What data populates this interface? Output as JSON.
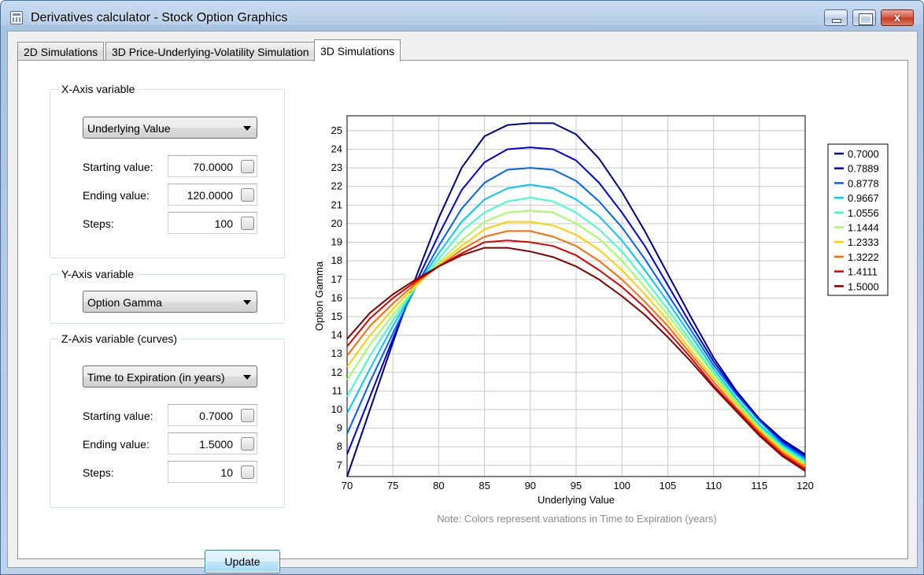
{
  "window": {
    "title": "Derivatives calculator - Stock Option Graphics",
    "close_glyph": "x"
  },
  "tabs": [
    {
      "label": "2D Simulations"
    },
    {
      "label": "3D Price-Underlying-Volatility Simulation"
    },
    {
      "label": "3D Simulations"
    }
  ],
  "x_axis_group": {
    "title": "X-Axis variable",
    "selected": "Underlying Value",
    "starting_label": "Starting value:",
    "starting_value": "70.0000",
    "ending_label": "Ending value:",
    "ending_value": "120.0000",
    "steps_label": "Steps:",
    "steps_value": "100"
  },
  "y_axis_group": {
    "title": "Y-Axis variable",
    "selected": "Option Gamma"
  },
  "z_axis_group": {
    "title": "Z-Axis variable (curves)",
    "selected": "Time to Expiration (in years)",
    "starting_label": "Starting value:",
    "starting_value": "0.7000",
    "ending_label": "Ending value:",
    "ending_value": "1.5000",
    "steps_label": "Steps:",
    "steps_value": "10"
  },
  "update_label": "Update",
  "note": "Note: Colors represent variations in Time to Expiration (years)",
  "chart_data": {
    "type": "line",
    "xlabel": "Underlying Value",
    "ylabel": "Option Gamma",
    "xlim": [
      70,
      120
    ],
    "ylim": [
      6.4,
      25.8
    ],
    "xticks": [
      70,
      75,
      80,
      85,
      90,
      95,
      100,
      105,
      110,
      115,
      120
    ],
    "yticks": [
      7,
      8,
      9,
      10,
      11,
      12,
      13,
      14,
      15,
      16,
      17,
      18,
      19,
      20,
      21,
      22,
      23,
      24,
      25
    ],
    "grid": true,
    "legend_position": "right",
    "x": [
      70,
      72.5,
      75,
      77.5,
      80,
      82.5,
      85,
      87.5,
      90,
      92.5,
      95,
      97.5,
      100,
      102.5,
      105,
      107.5,
      110,
      112.5,
      115,
      117.5,
      120
    ],
    "series": [
      {
        "name": "0.7000",
        "color": "#00007f",
        "values": [
          6.4,
          10.0,
          13.6,
          17.1,
          20.3,
          23.0,
          24.7,
          25.3,
          25.4,
          25.4,
          24.8,
          23.5,
          21.7,
          19.6,
          17.3,
          15.0,
          12.8,
          11.0,
          9.5,
          8.4,
          7.6
        ]
      },
      {
        "name": "0.7889",
        "color": "#0000e0",
        "values": [
          7.6,
          10.7,
          13.8,
          16.8,
          19.4,
          21.8,
          23.3,
          24.0,
          24.1,
          24.0,
          23.4,
          22.2,
          20.6,
          18.8,
          16.7,
          14.6,
          12.6,
          10.9,
          9.4,
          8.3,
          7.5
        ]
      },
      {
        "name": "0.8778",
        "color": "#0060ff",
        "values": [
          8.7,
          11.5,
          14.1,
          16.6,
          18.8,
          20.8,
          22.2,
          22.9,
          23.0,
          22.9,
          22.3,
          21.2,
          19.8,
          18.1,
          16.2,
          14.3,
          12.4,
          10.8,
          9.4,
          8.2,
          7.4
        ]
      },
      {
        "name": "0.9667",
        "color": "#00c8ff",
        "values": [
          9.8,
          12.2,
          14.5,
          16.6,
          18.4,
          20.1,
          21.3,
          21.9,
          22.1,
          21.9,
          21.3,
          20.4,
          19.1,
          17.5,
          15.8,
          14.0,
          12.2,
          10.6,
          9.2,
          8.1,
          7.3
        ]
      },
      {
        "name": "1.0556",
        "color": "#40ffc8",
        "values": [
          10.7,
          12.9,
          14.8,
          16.6,
          18.1,
          19.6,
          20.6,
          21.2,
          21.4,
          21.2,
          20.6,
          19.7,
          18.5,
          17.0,
          15.4,
          13.7,
          12.0,
          10.5,
          9.1,
          8.0,
          7.2
        ]
      },
      {
        "name": "1.1444",
        "color": "#a0ff60",
        "values": [
          11.6,
          13.5,
          15.1,
          16.6,
          17.9,
          19.1,
          20.1,
          20.6,
          20.7,
          20.6,
          20.0,
          19.2,
          18.0,
          16.6,
          15.1,
          13.5,
          11.9,
          10.4,
          9.0,
          7.9,
          7.1
        ]
      },
      {
        "name": "1.2333",
        "color": "#ffd000",
        "values": [
          12.3,
          14.0,
          15.4,
          16.7,
          17.8,
          18.8,
          19.7,
          20.1,
          20.1,
          19.9,
          19.4,
          18.6,
          17.5,
          16.2,
          14.8,
          13.2,
          11.7,
          10.3,
          8.9,
          7.8,
          7.0
        ]
      },
      {
        "name": "1.3222",
        "color": "#ff6a00",
        "values": [
          12.9,
          14.5,
          15.7,
          16.8,
          17.7,
          18.6,
          19.3,
          19.6,
          19.6,
          19.3,
          18.8,
          18.0,
          17.0,
          15.8,
          14.5,
          13.0,
          11.5,
          10.1,
          8.8,
          7.7,
          6.9
        ]
      },
      {
        "name": "1.4111",
        "color": "#e00000",
        "values": [
          13.4,
          14.9,
          16.0,
          16.9,
          17.7,
          18.4,
          19.0,
          19.1,
          19.0,
          18.8,
          18.3,
          17.5,
          16.6,
          15.5,
          14.2,
          12.8,
          11.3,
          10.0,
          8.7,
          7.6,
          6.8
        ]
      },
      {
        "name": "1.5000",
        "color": "#800000",
        "values": [
          13.8,
          15.2,
          16.2,
          17.0,
          17.7,
          18.3,
          18.7,
          18.7,
          18.5,
          18.2,
          17.7,
          17.0,
          16.1,
          15.1,
          13.9,
          12.6,
          11.2,
          9.9,
          8.6,
          7.5,
          6.7
        ]
      }
    ]
  }
}
